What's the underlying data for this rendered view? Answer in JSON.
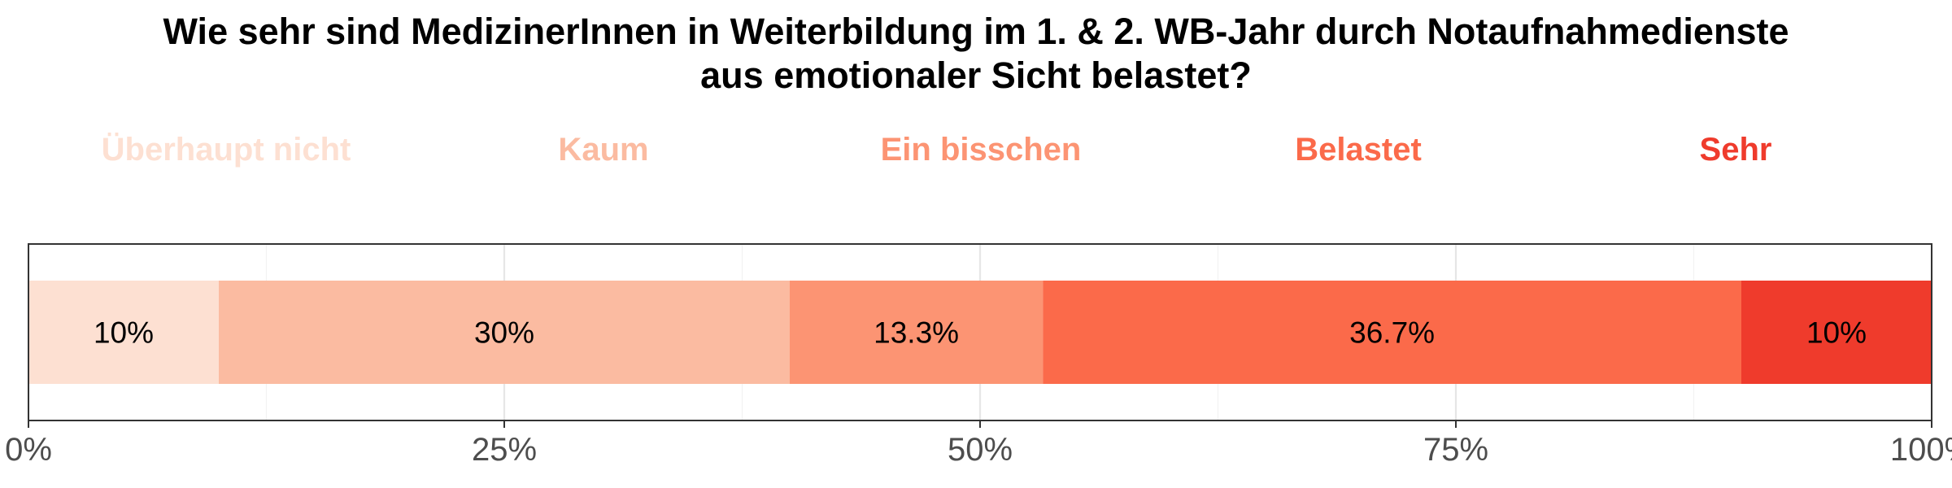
{
  "title": {
    "line1": "Wie sehr sind MedizinerInnen in Weiterbildung im 1. & 2. WB-Jahr durch Notaufnahmedienste",
    "line2": "aus emotionaler Sicht belastet?"
  },
  "chart_data": {
    "type": "bar",
    "orientation": "horizontal-stacked",
    "title": "Wie sehr sind MedizinerInnen in Weiterbildung im 1. & 2. WB-Jahr durch Notaufnahmedienste aus emotionaler Sicht belastet?",
    "xlim": [
      0,
      100
    ],
    "x_ticks": [
      0,
      25,
      50,
      75,
      100
    ],
    "x_tick_labels": [
      "0%",
      "25%",
      "50%",
      "75%",
      "100%"
    ],
    "grid": true,
    "legend_position": "top",
    "series": [
      {
        "name": "Überhaupt nicht",
        "value": 10,
        "label": "10%",
        "color": "#FDE0D2"
      },
      {
        "name": "Kaum",
        "value": 30,
        "label": "30%",
        "color": "#FBBBA1"
      },
      {
        "name": "Ein bisschen",
        "value": 13.3,
        "label": "13.3%",
        "color": "#FC9473"
      },
      {
        "name": "Belastet",
        "value": 36.7,
        "label": "36.7%",
        "color": "#FB6A4A"
      },
      {
        "name": "Sehr",
        "value": 10,
        "label": "10%",
        "color": "#EF3B2C"
      }
    ]
  }
}
